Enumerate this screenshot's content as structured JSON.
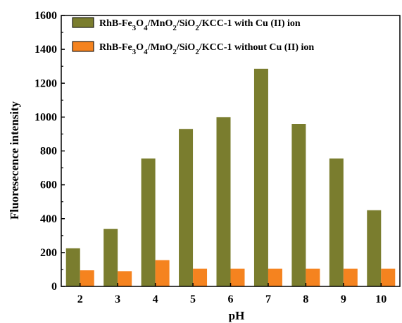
{
  "chart_data": {
    "type": "bar",
    "xlabel": "pH",
    "ylabel": "Fluoresecence intensity",
    "categories": [
      "2",
      "3",
      "4",
      "5",
      "6",
      "7",
      "8",
      "9",
      "10"
    ],
    "ylim": [
      0,
      1600
    ],
    "yticks": [
      "0",
      "200",
      "400",
      "600",
      "800",
      "1000",
      "1200",
      "1400",
      "1600"
    ],
    "legend_position": "top-right",
    "grid": false,
    "series": [
      {
        "name": "RhB-Fe3O4/MnO2/SiO2/KCC-1 with Cu (II) ion",
        "color": "#7a7d2e",
        "values": [
          225,
          340,
          755,
          930,
          1000,
          1285,
          960,
          755,
          450
        ]
      },
      {
        "name": "RhB-Fe3O4/MnO2/SiO2/KCC-1 without Cu (II) ion",
        "color": "#f5831f",
        "values": [
          95,
          90,
          155,
          105,
          105,
          105,
          105,
          105,
          105
        ]
      }
    ]
  }
}
